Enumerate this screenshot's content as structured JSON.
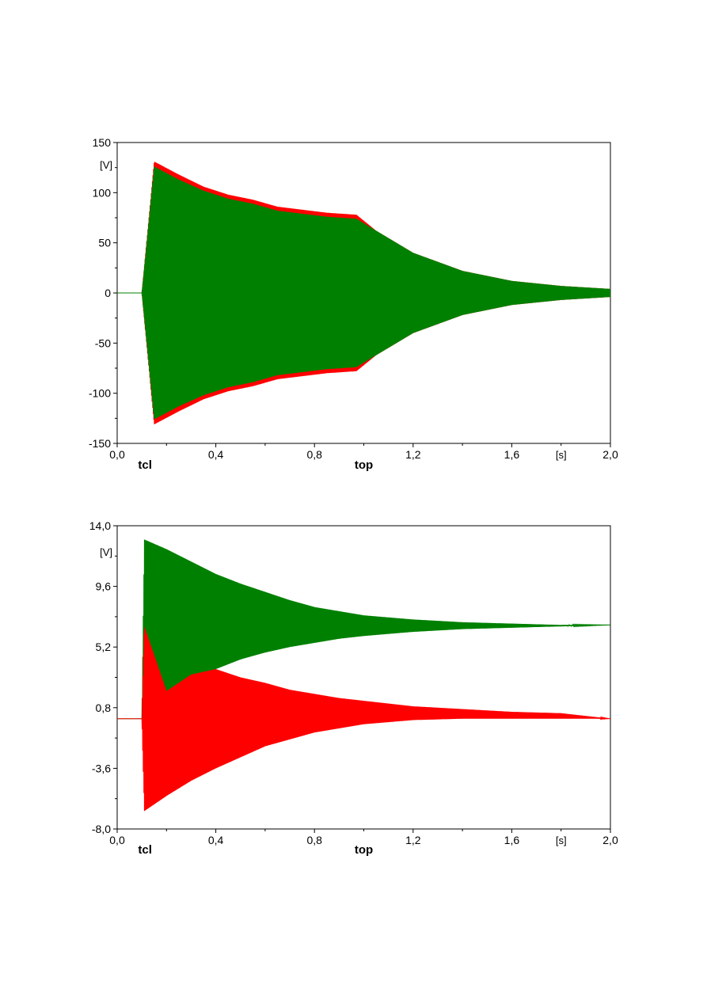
{
  "chart_data": [
    {
      "type": "line",
      "ylabel": "[V]",
      "xunit": "[s]",
      "xlim": [
        0.0,
        2.0
      ],
      "ylim": [
        -150,
        150
      ],
      "x_ticks": [
        0.0,
        0.4,
        0.8,
        1.2,
        1.6,
        2.0
      ],
      "x_tick_labels": [
        "0,0",
        "0,4",
        "0,8",
        "1,2",
        "1,6",
        "2,0"
      ],
      "y_ticks": [
        150,
        100,
        50,
        0,
        -50,
        -100,
        -150
      ],
      "y_tick_labels": [
        "150",
        "100",
        "50",
        "0",
        "-50",
        "-100",
        "-150"
      ],
      "markers": [
        {
          "label": "tcl",
          "x": 0.1
        },
        {
          "label": "top",
          "x": 1.0
        }
      ],
      "series": [
        {
          "color": "#ff0000",
          "envelope": {
            "t": [
              0.0,
              0.1,
              0.15,
              0.25,
              0.35,
              0.45,
              0.55,
              0.65,
              0.75,
              0.85,
              0.97,
              1.05,
              1.2,
              1.4,
              1.6,
              1.8,
              2.0
            ],
            "max": [
              0,
              0,
              131,
              118,
              106,
              98,
              93,
              86,
              83,
              80,
              78,
              62,
              40,
              22,
              12,
              7,
              4
            ],
            "min": [
              0,
              0,
              -131,
              -118,
              -106,
              -98,
              -93,
              -86,
              -83,
              -80,
              -78,
              -62,
              -40,
              -22,
              -12,
              -7,
              -4
            ]
          }
        },
        {
          "color": "#008000",
          "envelope": {
            "t": [
              0.0,
              0.1,
              0.15,
              0.25,
              0.35,
              0.45,
              0.55,
              0.65,
              0.75,
              0.85,
              0.97,
              1.05,
              1.2,
              1.4,
              1.6,
              1.8,
              2.0
            ],
            "max": [
              0,
              0,
              126,
              113,
              102,
              94,
              89,
              82,
              79,
              76,
              74,
              62,
              40,
              22,
              12,
              7,
              4
            ],
            "min": [
              0,
              0,
              -126,
              -113,
              -102,
              -94,
              -89,
              -82,
              -79,
              -76,
              -74,
              -62,
              -40,
              -22,
              -12,
              -7,
              -4
            ]
          }
        }
      ]
    },
    {
      "type": "line",
      "ylabel": "[V]",
      "xunit": "[s]",
      "xlim": [
        0.0,
        2.0
      ],
      "ylim": [
        -8.0,
        14.0
      ],
      "x_ticks": [
        0.0,
        0.4,
        0.8,
        1.2,
        1.6,
        2.0
      ],
      "x_tick_labels": [
        "0,0",
        "0,4",
        "0,8",
        "1,2",
        "1,6",
        "2,0"
      ],
      "y_ticks": [
        14.0,
        9.6,
        5.2,
        0.8,
        -3.6,
        -8.0
      ],
      "y_tick_labels": [
        "14,0",
        "9,6",
        "5,2",
        "0,8",
        "-3,6",
        "-8,0"
      ],
      "markers": [
        {
          "label": "tcl",
          "x": 0.1
        },
        {
          "label": "top",
          "x": 1.0
        }
      ],
      "series": [
        {
          "color": "#008000",
          "envelope": {
            "t": [
              0.0,
              0.1,
              0.11,
              0.2,
              0.3,
              0.4,
              0.5,
              0.6,
              0.7,
              0.8,
              0.9,
              1.0,
              1.2,
              1.4,
              1.6,
              1.8,
              2.0
            ],
            "max": [
              0.0,
              0.0,
              13.0,
              12.3,
              11.4,
              10.5,
              9.8,
              9.2,
              8.6,
              8.1,
              7.8,
              7.5,
              7.2,
              7.0,
              6.9,
              6.8,
              6.8
            ],
            "min": [
              0.0,
              0.0,
              0.8,
              1.8,
              2.8,
              3.6,
              4.3,
              4.8,
              5.2,
              5.5,
              5.8,
              6.0,
              6.3,
              6.5,
              6.6,
              6.7,
              6.8
            ]
          }
        },
        {
          "color": "#ff0000",
          "envelope": {
            "t": [
              0.0,
              0.1,
              0.11,
              0.2,
              0.3,
              0.4,
              0.5,
              0.6,
              0.7,
              0.8,
              0.9,
              1.0,
              1.2,
              1.4,
              1.6,
              1.8,
              2.0
            ],
            "max": [
              0.0,
              0.0,
              6.7,
              2.0,
              3.2,
              3.6,
              3.0,
              2.6,
              2.1,
              1.8,
              1.5,
              1.3,
              0.9,
              0.7,
              0.5,
              0.4,
              0.0
            ],
            "min": [
              0.0,
              0.0,
              -6.7,
              -5.6,
              -4.5,
              -3.6,
              -2.8,
              -2.0,
              -1.5,
              -1.0,
              -0.7,
              -0.4,
              -0.1,
              0.0,
              0.0,
              0.0,
              0.0
            ]
          }
        }
      ]
    }
  ]
}
